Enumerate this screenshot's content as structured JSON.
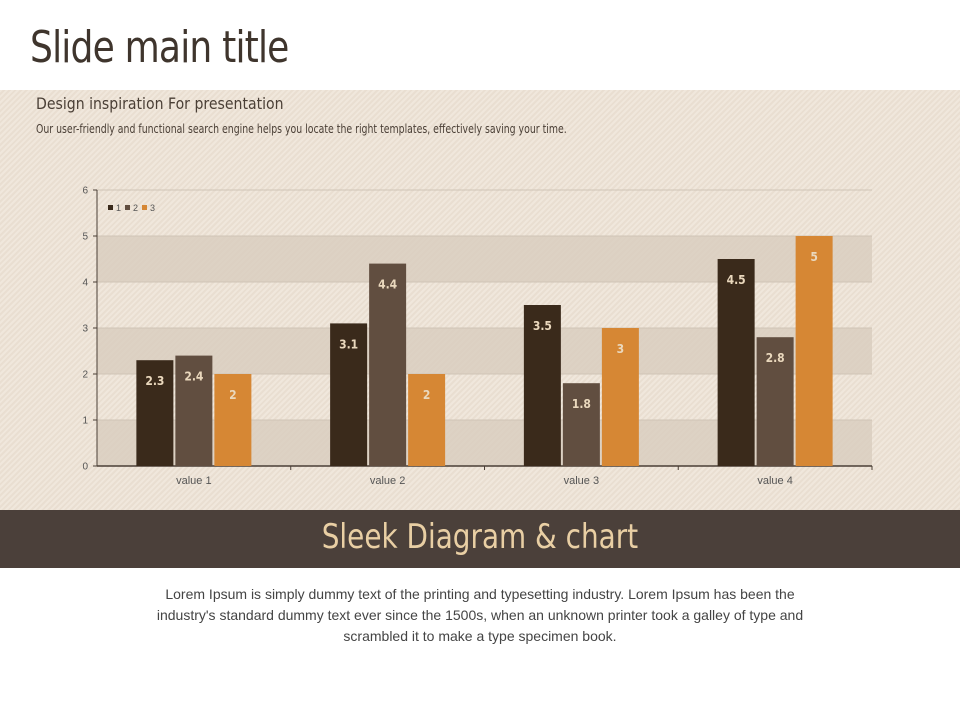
{
  "slide": {
    "title": "Slide main title",
    "subtitle": "Design inspiration For presentation",
    "description": "Our user-friendly and functional search engine helps you locate the right templates, effectively saving your time.",
    "banner": "Sleek Diagram & chart",
    "body": "Lorem Ipsum is simply dummy text of the printing and typesetting industry. Lorem Ipsum has been the industry's standard dummy text ever since the 1500s, when an unknown printer took a galley of type and scrambled it to make a type specimen book."
  },
  "colors": {
    "title_text": "#3f352d",
    "band_background": "#ede2d4",
    "banner_background": "#4b403a",
    "banner_text": "#e9cfa4",
    "grid_stripe": "#d9cec0",
    "axis": "#4a3f36"
  },
  "chart_data": {
    "type": "bar",
    "categories": [
      "value 1",
      "value 2",
      "value 3",
      "value 4"
    ],
    "series": [
      {
        "name": "1",
        "values": [
          2.3,
          3.1,
          3.5,
          4.5
        ],
        "color": "#3a2a1b"
      },
      {
        "name": "2",
        "values": [
          2.4,
          4.4,
          1.8,
          2.8
        ],
        "color": "#614e40"
      },
      {
        "name": "3",
        "values": [
          2,
          2,
          3,
          5
        ],
        "color": "#d68734"
      }
    ],
    "y_ticks": [
      "0",
      "1",
      "2",
      "3",
      "4",
      "5",
      "6"
    ],
    "ylim": [
      0,
      6
    ],
    "grid": "horizontal alternating bands",
    "legend_position": "top-left",
    "data_labels": true
  }
}
